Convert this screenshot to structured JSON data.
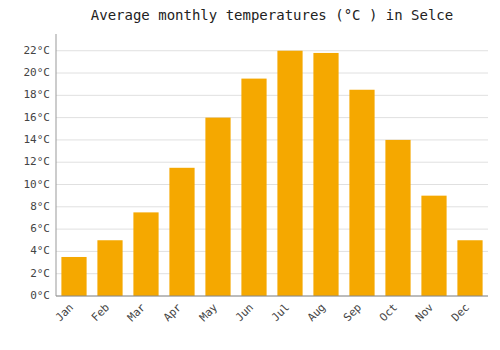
{
  "chart_data": {
    "type": "bar",
    "title": "Average monthly temperatures (°C ) in Selce",
    "categories": [
      "Jan",
      "Feb",
      "Mar",
      "Apr",
      "May",
      "Jun",
      "Jul",
      "Aug",
      "Sep",
      "Oct",
      "Nov",
      "Dec"
    ],
    "values": [
      3.5,
      5.0,
      7.5,
      11.5,
      16.0,
      19.5,
      22.0,
      21.8,
      18.5,
      14.0,
      9.0,
      5.0
    ],
    "color": "#F5A800",
    "ylim": [
      0,
      23.5
    ],
    "yticks": [
      {
        "value": 0,
        "label": "0°C"
      },
      {
        "value": 2,
        "label": "2°C"
      },
      {
        "value": 4,
        "label": "4°C"
      },
      {
        "value": 6,
        "label": "6°C"
      },
      {
        "value": 8,
        "label": "8°C"
      },
      {
        "value": 10,
        "label": "10°C"
      },
      {
        "value": 12,
        "label": "12°C"
      },
      {
        "value": 14,
        "label": "14°C"
      },
      {
        "value": 16,
        "label": "16°C"
      },
      {
        "value": 18,
        "label": "18°C"
      },
      {
        "value": 20,
        "label": "20°C"
      },
      {
        "value": 22,
        "label": "22°C"
      }
    ],
    "grid": true
  }
}
